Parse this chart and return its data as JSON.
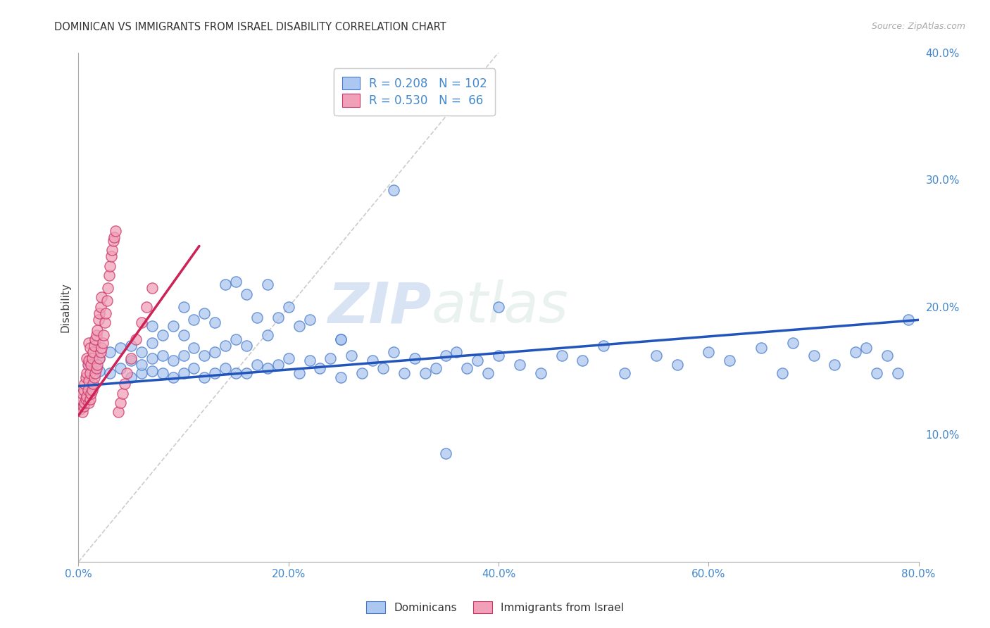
{
  "title": "DOMINICAN VS IMMIGRANTS FROM ISRAEL DISABILITY CORRELATION CHART",
  "source": "Source: ZipAtlas.com",
  "ylabel": "Disability",
  "watermark_zip": "ZIP",
  "watermark_atlas": "atlas",
  "xlim": [
    0.0,
    0.8
  ],
  "ylim": [
    0.0,
    0.4
  ],
  "xticks": [
    0.0,
    0.2,
    0.4,
    0.6,
    0.8
  ],
  "yticks_right": [
    0.1,
    0.2,
    0.3,
    0.4
  ],
  "blue_fill": "#adc8f0",
  "blue_edge": "#4477cc",
  "pink_fill": "#f0a0b8",
  "pink_edge": "#cc3366",
  "blue_line_color": "#2255bb",
  "pink_line_color": "#cc2255",
  "diagonal_color": "#cccccc",
  "tick_color": "#4488cc",
  "R_blue": 0.208,
  "N_blue": 102,
  "R_pink": 0.53,
  "N_pink": 66,
  "legend_label_blue": "Dominicans",
  "legend_label_pink": "Immigrants from Israel",
  "blue_scatter_x": [
    0.01,
    0.02,
    0.02,
    0.03,
    0.03,
    0.04,
    0.04,
    0.05,
    0.05,
    0.05,
    0.06,
    0.06,
    0.06,
    0.07,
    0.07,
    0.07,
    0.07,
    0.08,
    0.08,
    0.08,
    0.09,
    0.09,
    0.09,
    0.1,
    0.1,
    0.1,
    0.1,
    0.11,
    0.11,
    0.11,
    0.12,
    0.12,
    0.12,
    0.13,
    0.13,
    0.13,
    0.14,
    0.14,
    0.14,
    0.15,
    0.15,
    0.15,
    0.16,
    0.16,
    0.16,
    0.17,
    0.17,
    0.18,
    0.18,
    0.18,
    0.19,
    0.19,
    0.2,
    0.2,
    0.21,
    0.21,
    0.22,
    0.22,
    0.23,
    0.24,
    0.25,
    0.25,
    0.26,
    0.27,
    0.28,
    0.29,
    0.3,
    0.31,
    0.32,
    0.33,
    0.34,
    0.35,
    0.36,
    0.37,
    0.38,
    0.39,
    0.4,
    0.42,
    0.44,
    0.46,
    0.48,
    0.5,
    0.52,
    0.55,
    0.57,
    0.6,
    0.62,
    0.65,
    0.67,
    0.68,
    0.7,
    0.72,
    0.74,
    0.75,
    0.76,
    0.77,
    0.78,
    0.79,
    0.25,
    0.3,
    0.35,
    0.4
  ],
  "blue_scatter_y": [
    0.155,
    0.15,
    0.16,
    0.148,
    0.165,
    0.152,
    0.168,
    0.145,
    0.158,
    0.17,
    0.148,
    0.155,
    0.165,
    0.15,
    0.16,
    0.172,
    0.185,
    0.148,
    0.162,
    0.178,
    0.145,
    0.158,
    0.185,
    0.148,
    0.162,
    0.178,
    0.2,
    0.152,
    0.168,
    0.19,
    0.145,
    0.162,
    0.195,
    0.148,
    0.165,
    0.188,
    0.152,
    0.17,
    0.218,
    0.148,
    0.175,
    0.22,
    0.148,
    0.17,
    0.21,
    0.155,
    0.192,
    0.152,
    0.178,
    0.218,
    0.155,
    0.192,
    0.16,
    0.2,
    0.148,
    0.185,
    0.158,
    0.19,
    0.152,
    0.16,
    0.145,
    0.175,
    0.162,
    0.148,
    0.158,
    0.152,
    0.292,
    0.148,
    0.16,
    0.148,
    0.152,
    0.085,
    0.165,
    0.152,
    0.158,
    0.148,
    0.162,
    0.155,
    0.148,
    0.162,
    0.158,
    0.17,
    0.148,
    0.162,
    0.155,
    0.165,
    0.158,
    0.168,
    0.148,
    0.172,
    0.162,
    0.155,
    0.165,
    0.168,
    0.148,
    0.162,
    0.148,
    0.19,
    0.175,
    0.165,
    0.162,
    0.2
  ],
  "pink_scatter_x": [
    0.002,
    0.003,
    0.004,
    0.004,
    0.005,
    0.005,
    0.006,
    0.006,
    0.007,
    0.007,
    0.008,
    0.008,
    0.008,
    0.009,
    0.009,
    0.01,
    0.01,
    0.01,
    0.01,
    0.011,
    0.011,
    0.011,
    0.012,
    0.012,
    0.013,
    0.013,
    0.014,
    0.014,
    0.015,
    0.015,
    0.016,
    0.016,
    0.017,
    0.017,
    0.018,
    0.018,
    0.019,
    0.02,
    0.02,
    0.021,
    0.021,
    0.022,
    0.022,
    0.023,
    0.024,
    0.025,
    0.026,
    0.027,
    0.028,
    0.029,
    0.03,
    0.031,
    0.032,
    0.033,
    0.034,
    0.035,
    0.038,
    0.04,
    0.042,
    0.044,
    0.046,
    0.05,
    0.055,
    0.06,
    0.065,
    0.07
  ],
  "pink_scatter_y": [
    0.12,
    0.128,
    0.118,
    0.132,
    0.122,
    0.135,
    0.125,
    0.14,
    0.128,
    0.145,
    0.13,
    0.148,
    0.16,
    0.135,
    0.155,
    0.125,
    0.142,
    0.158,
    0.172,
    0.128,
    0.148,
    0.168,
    0.132,
    0.155,
    0.135,
    0.16,
    0.14,
    0.165,
    0.145,
    0.17,
    0.148,
    0.175,
    0.152,
    0.178,
    0.155,
    0.182,
    0.19,
    0.16,
    0.195,
    0.165,
    0.2,
    0.168,
    0.208,
    0.172,
    0.178,
    0.188,
    0.195,
    0.205,
    0.215,
    0.225,
    0.232,
    0.24,
    0.245,
    0.252,
    0.255,
    0.26,
    0.118,
    0.125,
    0.132,
    0.14,
    0.148,
    0.16,
    0.175,
    0.188,
    0.2,
    0.215
  ],
  "blue_line_x": [
    0.0,
    0.8
  ],
  "blue_line_y": [
    0.138,
    0.19
  ],
  "pink_line_x": [
    0.0,
    0.115
  ],
  "pink_line_y": [
    0.115,
    0.248
  ]
}
